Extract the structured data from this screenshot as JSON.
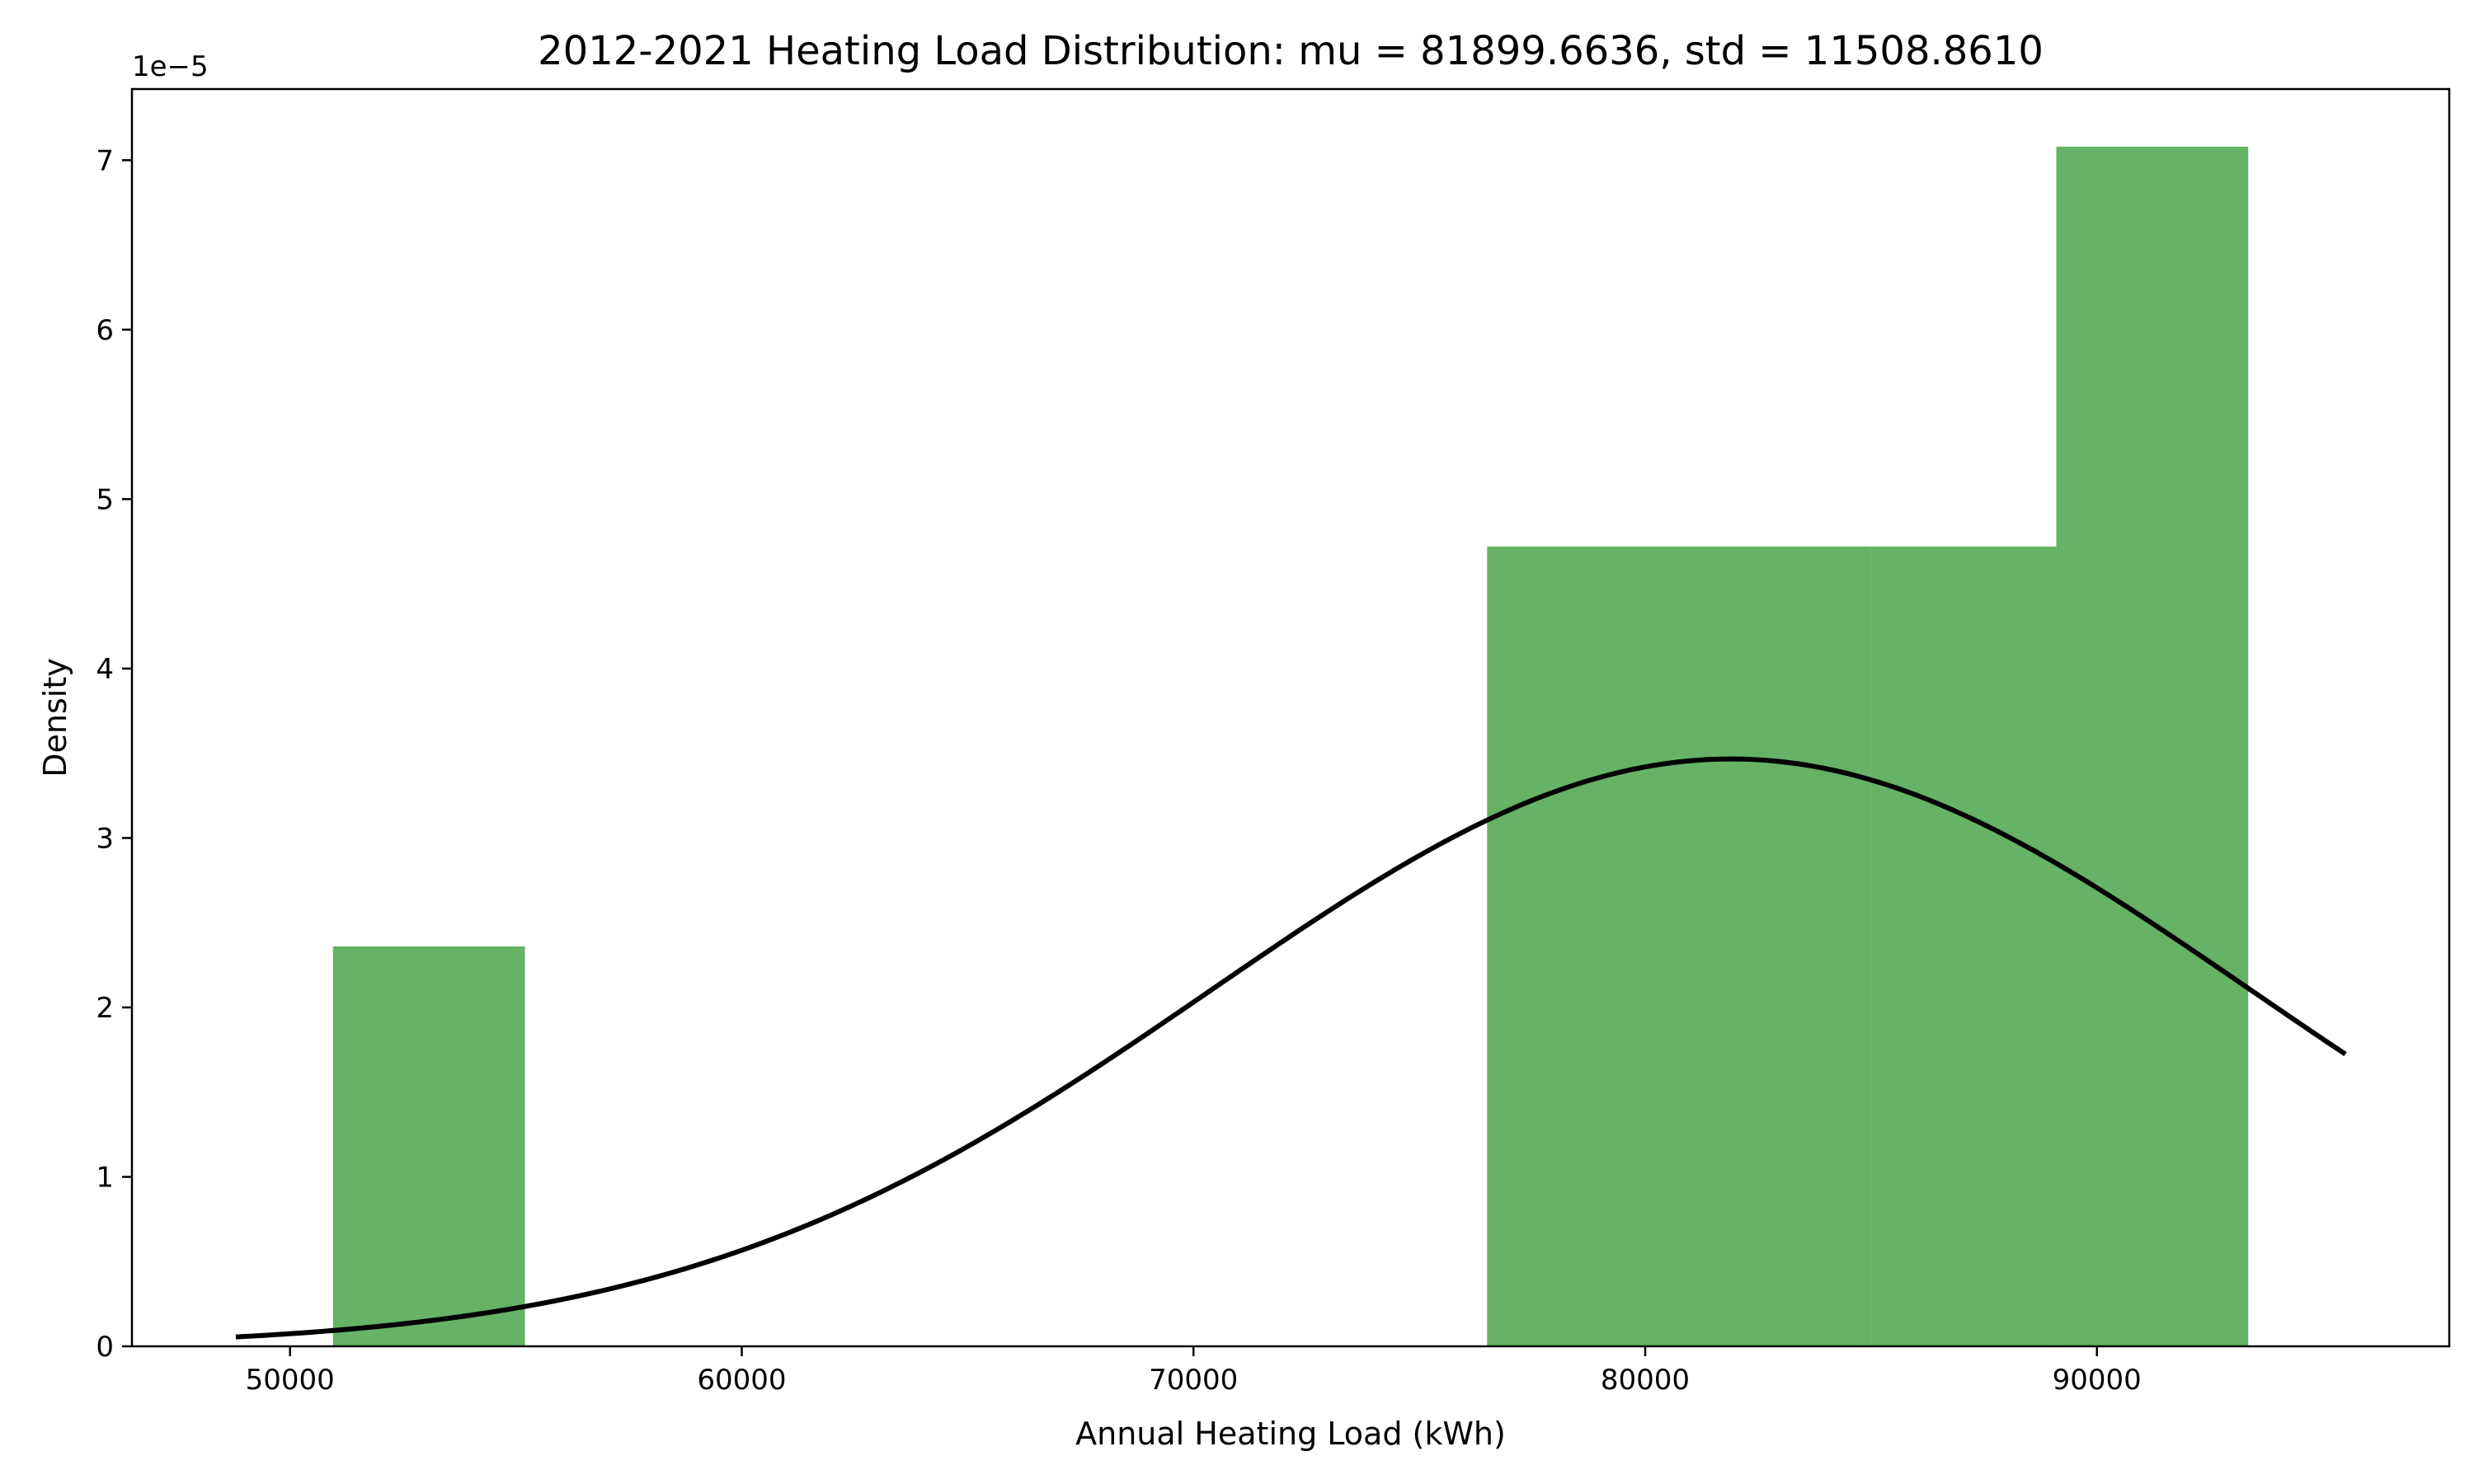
{
  "chart_data": {
    "type": "bar",
    "title": "2012-2021 Heating Load Distribution: mu = 81899.6636, std = 11508.8610",
    "xlabel": "Annual Heating Load (kWh)",
    "ylabel": "Density",
    "y_offset_label": "1e−5",
    "xlim": [
      46500,
      97800
    ],
    "ylim": [
      0,
      7.42
    ],
    "x_ticks": [
      {
        "value": 50000,
        "label": "50000"
      },
      {
        "value": 60000,
        "label": "60000"
      },
      {
        "value": 70000,
        "label": "70000"
      },
      {
        "value": 80000,
        "label": "80000"
      },
      {
        "value": 90000,
        "label": "90000"
      }
    ],
    "y_ticks": [
      {
        "value": 0,
        "label": "0"
      },
      {
        "value": 1,
        "label": "1"
      },
      {
        "value": 2,
        "label": "2"
      },
      {
        "value": 3,
        "label": "3"
      },
      {
        "value": 4,
        "label": "4"
      },
      {
        "value": 5,
        "label": "5"
      },
      {
        "value": 6,
        "label": "6"
      },
      {
        "value": 7,
        "label": "7"
      }
    ],
    "series": [
      {
        "kind": "histogram",
        "color": "#66b266",
        "bins": [
          {
            "x0": 50950,
            "x1": 55200,
            "value": 2.36
          },
          {
            "x0": 76500,
            "x1": 80750,
            "value": 4.72
          },
          {
            "x0": 80750,
            "x1": 85000,
            "value": 4.72
          },
          {
            "x0": 85000,
            "x1": 89100,
            "value": 4.72
          },
          {
            "x0": 89100,
            "x1": 93350,
            "value": 7.08
          }
        ]
      },
      {
        "kind": "line",
        "color": "#000000",
        "distribution": "normal",
        "mu": 81899.6636,
        "std": 11508.861,
        "x_range": [
          48800,
          95500
        ]
      }
    ],
    "grid": false
  }
}
